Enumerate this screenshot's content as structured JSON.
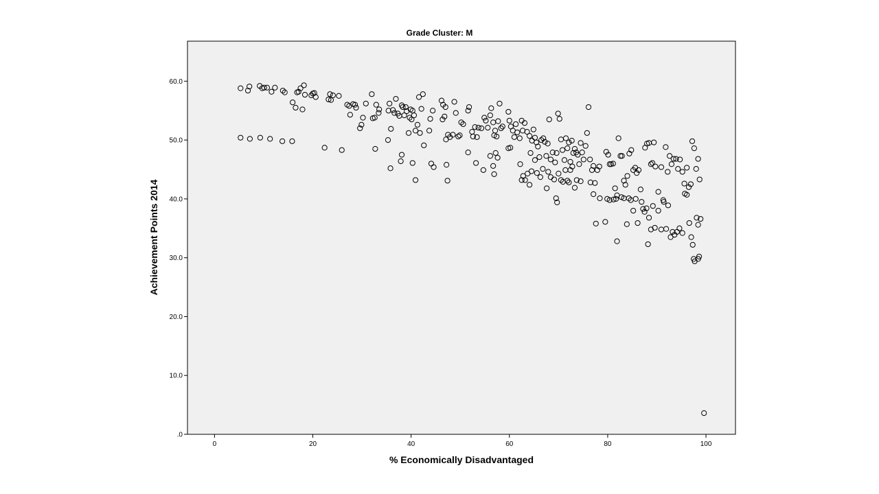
{
  "chart_data": {
    "type": "scatter",
    "title": "Grade Cluster: M",
    "xlabel": "% Economically Disadvantaged",
    "ylabel": "Achievement Points 2014",
    "xlim": [
      -5.5,
      106
    ],
    "ylim": [
      0,
      66.8
    ],
    "x_ticks": [
      0,
      20,
      40,
      60,
      80,
      100
    ],
    "x_tick_labels": [
      "0",
      "20",
      "40",
      "60",
      "80",
      "100"
    ],
    "y_ticks": [
      0,
      10,
      20,
      30,
      40,
      50,
      60
    ],
    "y_tick_labels": [
      ".0",
      "10.0",
      "20.0",
      "30.0",
      "40.0",
      "50.0",
      "60.0"
    ],
    "grid": false,
    "colors": {
      "plot_background": "#f0f0f0",
      "marker_stroke": "#000000"
    },
    "points": [
      [
        5.3,
        58.8
      ],
      [
        6.8,
        58.4
      ],
      [
        7.1,
        59.1
      ],
      [
        9.2,
        59.2
      ],
      [
        9.7,
        58.8
      ],
      [
        10.1,
        58.9
      ],
      [
        10.7,
        58.9
      ],
      [
        11.6,
        58.2
      ],
      [
        12.3,
        58.9
      ],
      [
        13.9,
        58.4
      ],
      [
        14.3,
        58.1
      ],
      [
        15.9,
        56.4
      ],
      [
        16.5,
        55.5
      ],
      [
        16.8,
        58.1
      ],
      [
        17.1,
        58.2
      ],
      [
        17.5,
        58.8
      ],
      [
        17.9,
        55.2
      ],
      [
        18.2,
        59.3
      ],
      [
        18.4,
        57.7
      ],
      [
        19.7,
        57.6
      ],
      [
        20.0,
        57.9
      ],
      [
        20.3,
        58.0
      ],
      [
        20.6,
        57.3
      ],
      [
        23.2,
        56.9
      ],
      [
        23.5,
        57.8
      ],
      [
        23.7,
        56.8
      ],
      [
        24.1,
        57.6
      ],
      [
        25.3,
        57.5
      ],
      [
        27.0,
        56.0
      ],
      [
        27.4,
        55.8
      ],
      [
        27.6,
        54.3
      ],
      [
        28.2,
        56.1
      ],
      [
        28.6,
        56.0
      ],
      [
        28.8,
        55.5
      ],
      [
        29.6,
        52.0
      ],
      [
        29.9,
        52.6
      ],
      [
        30.2,
        53.8
      ],
      [
        30.8,
        56.2
      ],
      [
        32.0,
        57.8
      ],
      [
        32.2,
        53.7
      ],
      [
        32.6,
        53.8
      ],
      [
        32.9,
        56.0
      ],
      [
        33.4,
        54.6
      ],
      [
        33.5,
        55.2
      ],
      [
        35.3,
        50.0
      ],
      [
        35.4,
        55.0
      ],
      [
        35.6,
        56.2
      ],
      [
        35.9,
        51.9
      ],
      [
        36.3,
        55.1
      ],
      [
        36.6,
        54.6
      ],
      [
        36.9,
        57.0
      ],
      [
        37.3,
        54.5
      ],
      [
        37.6,
        54.1
      ],
      [
        38.1,
        55.9
      ],
      [
        38.3,
        55.6
      ],
      [
        38.6,
        54.2
      ],
      [
        38.9,
        55.6
      ],
      [
        39.1,
        54.9
      ],
      [
        39.5,
        51.2
      ],
      [
        39.7,
        53.8
      ],
      [
        39.9,
        55.2
      ],
      [
        40.1,
        53.5
      ],
      [
        40.3,
        55.0
      ],
      [
        40.6,
        54.2
      ],
      [
        40.9,
        51.6
      ],
      [
        41.3,
        52.6
      ],
      [
        41.6,
        57.3
      ],
      [
        41.8,
        51.2
      ],
      [
        42.1,
        55.3
      ],
      [
        42.4,
        57.8
      ],
      [
        43.7,
        51.6
      ],
      [
        43.9,
        53.6
      ],
      [
        44.4,
        55.0
      ],
      [
        46.2,
        56.7
      ],
      [
        46.4,
        53.5
      ],
      [
        46.5,
        56.0
      ],
      [
        46.8,
        54.0
      ],
      [
        47.0,
        55.6
      ],
      [
        47.1,
        50.1
      ],
      [
        47.5,
        50.9
      ],
      [
        47.9,
        50.5
      ],
      [
        48.5,
        50.9
      ],
      [
        48.8,
        56.5
      ],
      [
        49.1,
        54.6
      ],
      [
        49.6,
        50.6
      ],
      [
        49.9,
        50.8
      ],
      [
        50.2,
        53.0
      ],
      [
        50.6,
        52.7
      ],
      [
        51.6,
        55.0
      ],
      [
        51.8,
        55.6
      ],
      [
        52.4,
        51.4
      ],
      [
        52.6,
        50.6
      ],
      [
        53.0,
        52.2
      ],
      [
        53.4,
        50.5
      ],
      [
        53.7,
        52.1
      ],
      [
        54.3,
        52.0
      ],
      [
        54.9,
        53.8
      ],
      [
        55.2,
        53.3
      ],
      [
        55.6,
        52.1
      ],
      [
        56.1,
        54.2
      ],
      [
        56.3,
        55.4
      ],
      [
        56.7,
        53.0
      ],
      [
        56.9,
        50.8
      ],
      [
        57.1,
        51.6
      ],
      [
        57.4,
        50.6
      ],
      [
        57.7,
        53.2
      ],
      [
        58.0,
        56.2
      ],
      [
        58.3,
        52.0
      ],
      [
        58.6,
        52.3
      ],
      [
        59.8,
        54.8
      ],
      [
        60.0,
        53.3
      ],
      [
        60.3,
        52.3
      ],
      [
        60.7,
        51.6
      ],
      [
        61.0,
        50.5
      ],
      [
        61.3,
        52.7
      ],
      [
        61.6,
        51.3
      ],
      [
        62.1,
        50.3
      ],
      [
        62.5,
        53.3
      ],
      [
        62.7,
        51.6
      ],
      [
        63.1,
        52.9
      ],
      [
        63.6,
        51.4
      ],
      [
        64.1,
        50.7
      ],
      [
        64.3,
        47.8
      ],
      [
        64.6,
        49.9
      ],
      [
        64.9,
        51.8
      ],
      [
        65.2,
        50.4
      ],
      [
        65.5,
        49.6
      ],
      [
        65.8,
        48.9
      ],
      [
        66.1,
        47.1
      ],
      [
        66.5,
        50.0
      ],
      [
        66.9,
        50.3
      ],
      [
        67.2,
        49.7
      ],
      [
        67.5,
        47.3
      ],
      [
        67.8,
        49.4
      ],
      [
        68.1,
        53.5
      ],
      [
        68.4,
        46.7
      ],
      [
        68.8,
        47.9
      ],
      [
        69.3,
        46.2
      ],
      [
        69.6,
        47.8
      ],
      [
        69.9,
        54.5
      ],
      [
        70.2,
        53.6
      ],
      [
        70.5,
        50.1
      ],
      [
        70.8,
        48.3
      ],
      [
        71.2,
        46.6
      ],
      [
        71.5,
        50.3
      ],
      [
        71.8,
        48.6
      ],
      [
        72.1,
        49.6
      ],
      [
        72.4,
        46.3
      ],
      [
        72.7,
        49.9
      ],
      [
        73.0,
        47.8
      ],
      [
        73.3,
        48.5
      ],
      [
        73.6,
        47.9
      ],
      [
        73.9,
        47.5
      ],
      [
        74.2,
        45.9
      ],
      [
        74.5,
        49.5
      ],
      [
        74.8,
        47.9
      ],
      [
        75.1,
        46.7
      ],
      [
        75.5,
        49.0
      ],
      [
        75.8,
        51.2
      ],
      [
        76.1,
        55.6
      ],
      [
        76.4,
        46.7
      ],
      [
        76.8,
        44.9
      ],
      [
        77.1,
        45.6
      ],
      [
        77.4,
        42.7
      ],
      [
        77.9,
        44.9
      ],
      [
        78.3,
        45.5
      ],
      [
        79.7,
        48.0
      ],
      [
        80.1,
        47.5
      ],
      [
        80.4,
        45.9
      ],
      [
        80.7,
        45.9
      ],
      [
        81.1,
        46.0
      ],
      [
        81.5,
        41.8
      ],
      [
        81.9,
        40.6
      ],
      [
        82.2,
        50.3
      ],
      [
        82.6,
        47.3
      ],
      [
        82.9,
        47.3
      ],
      [
        83.3,
        43.1
      ],
      [
        83.6,
        42.4
      ],
      [
        84.0,
        43.9
      ],
      [
        84.4,
        47.7
      ],
      [
        84.8,
        48.3
      ],
      [
        85.2,
        44.9
      ],
      [
        85.6,
        45.3
      ],
      [
        85.9,
        44.4
      ],
      [
        86.3,
        44.9
      ],
      [
        86.7,
        41.6
      ],
      [
        87.6,
        48.7
      ],
      [
        88.0,
        49.4
      ],
      [
        88.4,
        49.5
      ],
      [
        88.8,
        45.9
      ],
      [
        89.1,
        46.1
      ],
      [
        89.4,
        49.6
      ],
      [
        89.7,
        45.5
      ],
      [
        90.3,
        41.2
      ],
      [
        90.9,
        45.4
      ],
      [
        91.3,
        39.8
      ],
      [
        91.8,
        48.8
      ],
      [
        92.2,
        44.6
      ],
      [
        92.6,
        47.3
      ],
      [
        93.0,
        45.9
      ],
      [
        93.4,
        46.8
      ],
      [
        93.9,
        46.8
      ],
      [
        94.3,
        45.1
      ],
      [
        94.7,
        46.7
      ],
      [
        95.2,
        44.6
      ],
      [
        95.6,
        42.6
      ],
      [
        96.1,
        45.3
      ],
      [
        96.5,
        42.0
      ],
      [
        96.9,
        42.5
      ],
      [
        97.2,
        49.8
      ],
      [
        97.6,
        48.6
      ],
      [
        98.0,
        45.1
      ],
      [
        98.4,
        46.8
      ],
      [
        98.7,
        43.3
      ],
      [
        5.3,
        50.4
      ],
      [
        7.2,
        50.2
      ],
      [
        9.3,
        50.4
      ],
      [
        11.3,
        50.2
      ],
      [
        13.8,
        49.8
      ],
      [
        15.8,
        49.8
      ],
      [
        22.4,
        48.7
      ],
      [
        25.9,
        48.3
      ],
      [
        32.7,
        48.5
      ],
      [
        35.8,
        45.2
      ],
      [
        37.9,
        46.4
      ],
      [
        38.1,
        47.5
      ],
      [
        40.3,
        46.1
      ],
      [
        40.9,
        43.2
      ],
      [
        42.6,
        49.1
      ],
      [
        44.1,
        46.0
      ],
      [
        44.6,
        45.4
      ],
      [
        47.2,
        45.8
      ],
      [
        47.4,
        43.1
      ],
      [
        51.6,
        47.9
      ],
      [
        53.2,
        46.1
      ],
      [
        54.7,
        44.9
      ],
      [
        56.1,
        47.3
      ],
      [
        56.7,
        45.6
      ],
      [
        56.9,
        44.2
      ],
      [
        57.2,
        47.8
      ],
      [
        57.6,
        47.0
      ],
      [
        59.8,
        48.6
      ],
      [
        60.2,
        48.7
      ],
      [
        62.2,
        45.9
      ],
      [
        62.5,
        43.2
      ],
      [
        62.8,
        43.9
      ],
      [
        63.2,
        43.2
      ],
      [
        63.7,
        44.3
      ],
      [
        64.1,
        42.4
      ],
      [
        64.5,
        44.7
      ],
      [
        65.2,
        46.6
      ],
      [
        65.6,
        44.4
      ],
      [
        66.3,
        43.7
      ],
      [
        66.8,
        45.1
      ],
      [
        67.6,
        41.8
      ],
      [
        67.9,
        44.6
      ],
      [
        68.4,
        43.7
      ],
      [
        69.1,
        43.3
      ],
      [
        69.5,
        40.1
      ],
      [
        69.7,
        39.4
      ],
      [
        70.0,
        44.3
      ],
      [
        70.5,
        43.2
      ],
      [
        70.9,
        42.9
      ],
      [
        71.4,
        44.9
      ],
      [
        71.8,
        43.1
      ],
      [
        72.1,
        42.8
      ],
      [
        72.4,
        44.9
      ],
      [
        72.8,
        45.5
      ],
      [
        73.3,
        41.9
      ],
      [
        73.7,
        43.2
      ],
      [
        74.5,
        43.0
      ],
      [
        76.5,
        42.8
      ],
      [
        77.1,
        40.8
      ],
      [
        77.6,
        35.8
      ],
      [
        78.4,
        40.1
      ],
      [
        79.5,
        36.1
      ],
      [
        79.9,
        40.0
      ],
      [
        80.4,
        39.8
      ],
      [
        81.2,
        39.9
      ],
      [
        81.7,
        40.0
      ],
      [
        81.9,
        32.8
      ],
      [
        82.8,
        40.3
      ],
      [
        83.3,
        40.1
      ],
      [
        83.9,
        35.7
      ],
      [
        84.3,
        40.1
      ],
      [
        84.7,
        39.8
      ],
      [
        85.2,
        38.0
      ],
      [
        85.7,
        40.0
      ],
      [
        86.1,
        35.9
      ],
      [
        86.9,
        39.5
      ],
      [
        87.2,
        38.3
      ],
      [
        87.5,
        37.8
      ],
      [
        87.9,
        38.4
      ],
      [
        88.2,
        32.3
      ],
      [
        88.4,
        36.8
      ],
      [
        88.8,
        34.8
      ],
      [
        89.2,
        38.8
      ],
      [
        89.6,
        35.1
      ],
      [
        90.3,
        38.0
      ],
      [
        90.9,
        34.8
      ],
      [
        91.4,
        39.5
      ],
      [
        91.9,
        34.9
      ],
      [
        92.3,
        38.9
      ],
      [
        92.8,
        33.5
      ],
      [
        93.2,
        34.4
      ],
      [
        93.6,
        33.9
      ],
      [
        94.1,
        34.4
      ],
      [
        94.6,
        35.0
      ],
      [
        95.2,
        34.2
      ],
      [
        95.7,
        40.9
      ],
      [
        96.1,
        40.7
      ],
      [
        96.6,
        35.9
      ],
      [
        97.0,
        33.5
      ],
      [
        97.3,
        32.2
      ],
      [
        97.5,
        29.8
      ],
      [
        97.7,
        29.4
      ],
      [
        98.1,
        36.8
      ],
      [
        98.4,
        35.6
      ],
      [
        98.6,
        30.2
      ],
      [
        98.4,
        29.8
      ],
      [
        98.9,
        36.6
      ],
      [
        99.6,
        3.6
      ]
    ]
  }
}
